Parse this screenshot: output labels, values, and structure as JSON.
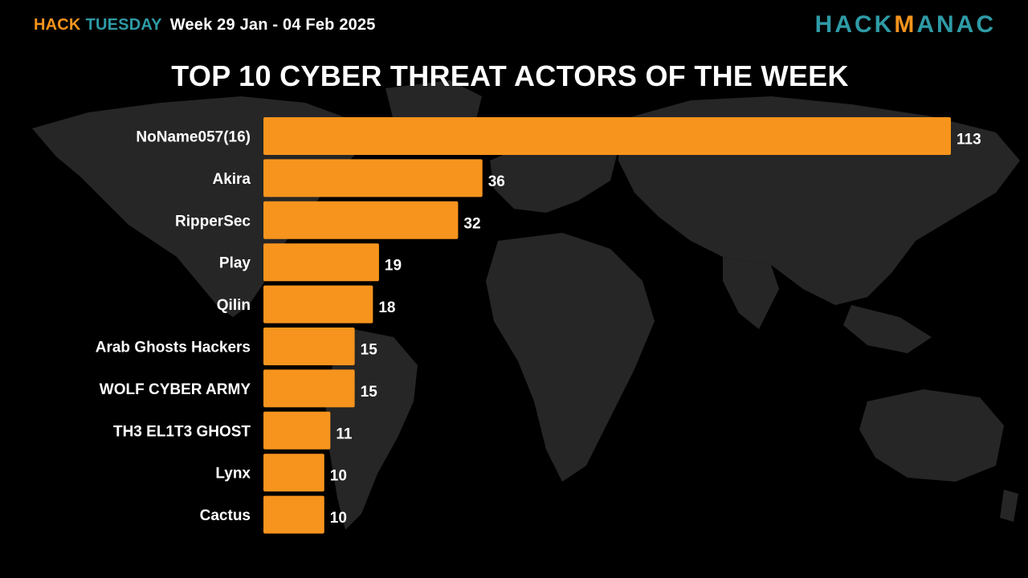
{
  "header": {
    "brand_hack": "HACK",
    "brand_tuesday": "TUESDAY",
    "week": "Week 29 Jan - 04 Feb 2025",
    "logo_part1": "HACK",
    "logo_part2": "M",
    "logo_part3": "ANAC"
  },
  "colors": {
    "bar": "#F7941D",
    "accent_teal": "#2E9BA6",
    "background": "#000000",
    "map": "#262626"
  },
  "chart_data": {
    "type": "bar",
    "orientation": "horizontal",
    "title": "TOP 10 CYBER THREAT ACTORS OF THE WEEK",
    "categories": [
      "NoName057(16)",
      "Akira",
      "RipperSec",
      "Play",
      "Qilin",
      "Arab Ghosts Hackers",
      "WOLF CYBER ARMY",
      "TH3 EL1T3 GHOST",
      "Lynx",
      "Cactus"
    ],
    "values": [
      113,
      36,
      32,
      19,
      18,
      15,
      15,
      11,
      10,
      10
    ],
    "xlabel": "",
    "ylabel": "",
    "data_labels": true,
    "grid": false,
    "legend": "none"
  }
}
